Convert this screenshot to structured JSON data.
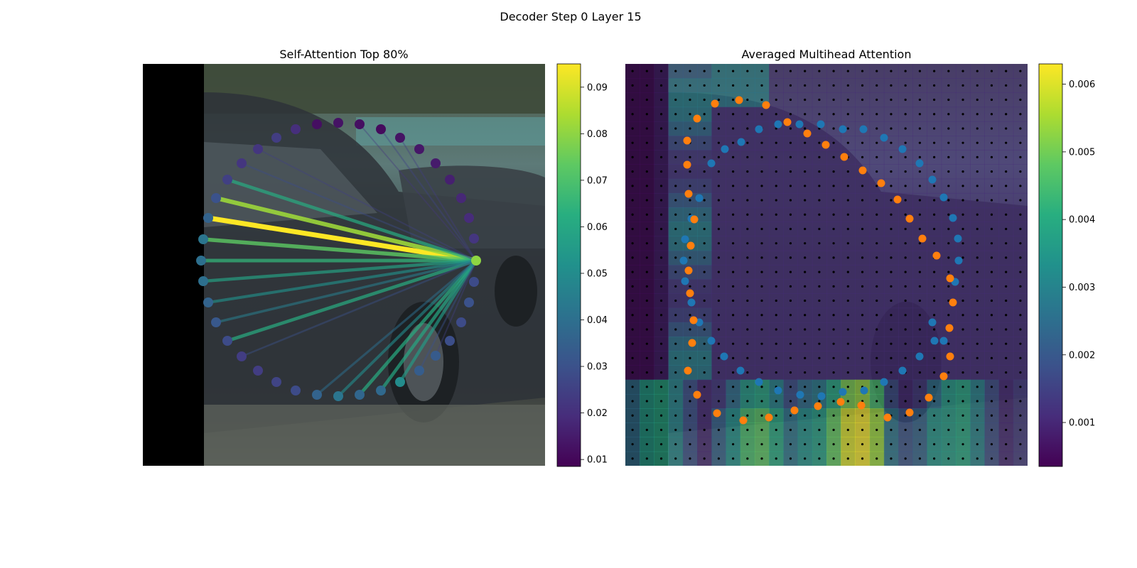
{
  "figure": {
    "title": "Decoder Step 0 Layer 15"
  },
  "chart_data": [
    {
      "type": "scatter",
      "title": "Self-Attention Top 80%",
      "description_of_marks": "contour points with attention lines from query point",
      "colormap": "viridis",
      "colorbar": {
        "range": [
          0.0085,
          0.095
        ],
        "ticks": [
          0.01,
          0.02,
          0.03,
          0.04,
          0.05,
          0.06,
          0.07,
          0.08,
          0.09
        ],
        "tick_labels": [
          "0.01",
          "0.02",
          "0.03",
          "0.04",
          "0.05",
          "0.06",
          "0.07",
          "0.08",
          "0.09"
        ]
      },
      "query_point": {
        "x": 469,
        "y": 277,
        "value": 0.08
      },
      "points": [
        {
          "x": 245,
          "y": 85,
          "value": 0.012
        },
        {
          "x": 275,
          "y": 83,
          "value": 0.013
        },
        {
          "x": 305,
          "y": 85,
          "value": 0.012
        },
        {
          "x": 335,
          "y": 92,
          "value": 0.011
        },
        {
          "x": 362,
          "y": 104,
          "value": 0.013
        },
        {
          "x": 389,
          "y": 120,
          "value": 0.014
        },
        {
          "x": 412,
          "y": 140,
          "value": 0.015
        },
        {
          "x": 432,
          "y": 163,
          "value": 0.016
        },
        {
          "x": 448,
          "y": 189,
          "value": 0.018
        },
        {
          "x": 459,
          "y": 217,
          "value": 0.019
        },
        {
          "x": 466,
          "y": 246,
          "value": 0.022
        },
        {
          "x": 466,
          "y": 307,
          "value": 0.028
        },
        {
          "x": 459,
          "y": 336,
          "value": 0.03
        },
        {
          "x": 448,
          "y": 364,
          "value": 0.028
        },
        {
          "x": 432,
          "y": 390,
          "value": 0.029
        },
        {
          "x": 412,
          "y": 411,
          "value": 0.033
        },
        {
          "x": 389,
          "y": 432,
          "value": 0.034
        },
        {
          "x": 362,
          "y": 448,
          "value": 0.05
        },
        {
          "x": 335,
          "y": 460,
          "value": 0.038
        },
        {
          "x": 305,
          "y": 466,
          "value": 0.037
        },
        {
          "x": 275,
          "y": 468,
          "value": 0.042
        },
        {
          "x": 245,
          "y": 466,
          "value": 0.036
        },
        {
          "x": 215,
          "y": 460,
          "value": 0.028
        },
        {
          "x": 188,
          "y": 448,
          "value": 0.026
        },
        {
          "x": 162,
          "y": 432,
          "value": 0.024
        },
        {
          "x": 139,
          "y": 412,
          "value": 0.024
        },
        {
          "x": 119,
          "y": 390,
          "value": 0.028
        },
        {
          "x": 103,
          "y": 364,
          "value": 0.032
        },
        {
          "x": 92,
          "y": 336,
          "value": 0.036
        },
        {
          "x": 85,
          "y": 306,
          "value": 0.04
        },
        {
          "x": 82,
          "y": 277,
          "value": 0.04
        },
        {
          "x": 85,
          "y": 247,
          "value": 0.042
        },
        {
          "x": 92,
          "y": 217,
          "value": 0.036
        },
        {
          "x": 103,
          "y": 189,
          "value": 0.03
        },
        {
          "x": 119,
          "y": 163,
          "value": 0.025
        },
        {
          "x": 139,
          "y": 140,
          "value": 0.022
        },
        {
          "x": 162,
          "y": 120,
          "value": 0.022
        },
        {
          "x": 188,
          "y": 104,
          "value": 0.024
        },
        {
          "x": 215,
          "y": 92,
          "value": 0.02
        }
      ],
      "attention_lines": [
        {
          "to": [
            92,
            217
          ],
          "value": 0.095
        },
        {
          "to": [
            103,
            189
          ],
          "value": 0.082
        },
        {
          "to": [
            85,
            247
          ],
          "value": 0.073
        },
        {
          "to": [
            119,
            163
          ],
          "value": 0.062
        },
        {
          "to": [
            82,
            277
          ],
          "value": 0.065
        },
        {
          "to": [
            85,
            306
          ],
          "value": 0.058
        },
        {
          "to": [
            119,
            390
          ],
          "value": 0.062
        },
        {
          "to": [
            92,
            336
          ],
          "value": 0.052
        },
        {
          "to": [
            103,
            364
          ],
          "value": 0.045
        },
        {
          "to": [
            139,
            412
          ],
          "value": 0.03
        },
        {
          "to": [
            139,
            140
          ],
          "value": 0.028
        },
        {
          "to": [
            162,
            120
          ],
          "value": 0.025
        },
        {
          "to": [
            305,
            466
          ],
          "value": 0.062
        },
        {
          "to": [
            335,
            460
          ],
          "value": 0.06
        },
        {
          "to": [
            362,
            448
          ],
          "value": 0.056
        },
        {
          "to": [
            275,
            468
          ],
          "value": 0.05
        },
        {
          "to": [
            245,
            466
          ],
          "value": 0.04
        },
        {
          "to": [
            389,
            432
          ],
          "value": 0.03
        },
        {
          "to": [
            412,
            411
          ],
          "value": 0.025
        },
        {
          "to": [
            335,
            92
          ],
          "value": 0.026
        },
        {
          "to": [
            305,
            85
          ],
          "value": 0.022
        },
        {
          "to": [
            362,
            104
          ],
          "value": 0.024
        }
      ]
    },
    {
      "type": "heatmap",
      "title": "Averaged Multihead Attention",
      "description_of_marks": "attention heatmap overlaid on image with reference grid points and two point sets",
      "colormap": "viridis",
      "colorbar": {
        "range": [
          0.00035,
          0.0063
        ],
        "ticks": [
          0.001,
          0.002,
          0.003,
          0.004,
          0.005,
          0.006
        ],
        "tick_labels": [
          "0.001",
          "0.002",
          "0.003",
          "0.004",
          "0.005",
          "0.006"
        ]
      },
      "series": [
        {
          "color": "#1f77b4",
          "points": [
            [
              93,
              218
            ],
            [
              104,
              189
            ],
            [
              121,
              140
            ],
            [
              140,
              120
            ],
            [
              163,
              110
            ],
            [
              188,
              92
            ],
            [
              215,
              85
            ],
            [
              245,
              85
            ],
            [
              275,
              85
            ],
            [
              306,
              92
            ],
            [
              335,
              92
            ],
            [
              364,
              104
            ],
            [
              390,
              120
            ],
            [
              414,
              140
            ],
            [
              432,
              163
            ],
            [
              448,
              188
            ],
            [
              461,
              217
            ],
            [
              468,
              246
            ],
            [
              469,
              277
            ],
            [
              464,
              307
            ],
            [
              432,
              364
            ],
            [
              448,
              390
            ],
            [
              435,
              390
            ],
            [
              414,
              412
            ],
            [
              390,
              432
            ],
            [
              364,
              448
            ],
            [
              336,
              460
            ],
            [
              306,
              462
            ],
            [
              276,
              468
            ],
            [
              246,
              466
            ],
            [
              215,
              460
            ],
            [
              188,
              448
            ],
            [
              162,
              432
            ],
            [
              139,
              412
            ],
            [
              121,
              390
            ],
            [
              104,
              364
            ],
            [
              93,
              336
            ],
            [
              84,
              306
            ],
            [
              82,
              277
            ],
            [
              84,
              247
            ]
          ]
        },
        {
          "color": "#ff7f0e",
          "points": [
            [
              87,
              108
            ],
            [
              101,
              77
            ],
            [
              126,
              56
            ],
            [
              160,
              51
            ],
            [
              198,
              58
            ],
            [
              228,
              82
            ],
            [
              256,
              98
            ],
            [
              282,
              114
            ],
            [
              308,
              131
            ],
            [
              334,
              150
            ],
            [
              360,
              168
            ],
            [
              383,
              191
            ],
            [
              400,
              218
            ],
            [
              418,
              246
            ],
            [
              438,
              270
            ],
            [
              457,
              302
            ],
            [
              461,
              336
            ],
            [
              456,
              372
            ],
            [
              457,
              412
            ],
            [
              448,
              440
            ],
            [
              427,
              470
            ],
            [
              400,
              491
            ],
            [
              369,
              498
            ],
            [
              332,
              481
            ],
            [
              303,
              476
            ],
            [
              271,
              482
            ],
            [
              238,
              488
            ],
            [
              202,
              498
            ],
            [
              166,
              502
            ],
            [
              129,
              492
            ],
            [
              101,
              466
            ],
            [
              88,
              432
            ],
            [
              94,
              393
            ],
            [
              96,
              361
            ],
            [
              91,
              323
            ],
            [
              89,
              291
            ],
            [
              92,
              256
            ],
            [
              97,
              219
            ],
            [
              89,
              183
            ],
            [
              87,
              142
            ]
          ]
        }
      ]
    }
  ]
}
